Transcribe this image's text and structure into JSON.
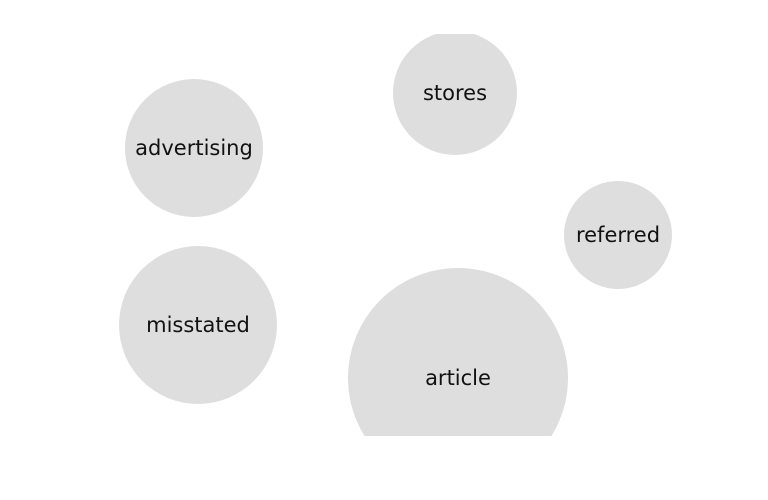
{
  "bubbles": [
    {
      "label": "stores",
      "fill": "#dedede"
    },
    {
      "label": "advertising",
      "fill": "#dedede"
    },
    {
      "label": "referred",
      "fill": "#dedede"
    },
    {
      "label": "misstated",
      "fill": "#dedede"
    },
    {
      "label": "article",
      "fill": "#dedede"
    }
  ]
}
